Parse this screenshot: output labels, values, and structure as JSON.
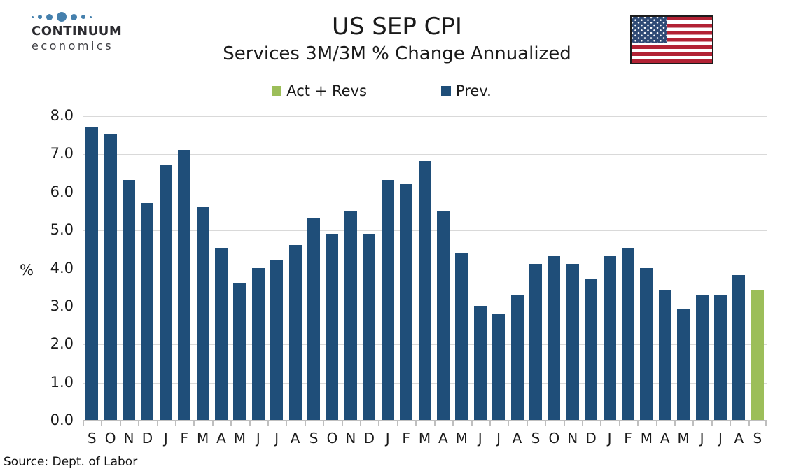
{
  "logo": {
    "line1": "CONTINUUM",
    "line2": "economics",
    "dot_color": "#4580ad",
    "dot_sizes": [
      3,
      6,
      9,
      14,
      9,
      6,
      3
    ]
  },
  "header": {
    "title": "US SEP CPI",
    "subtitle": "Services 3M/3M % Change Annualized"
  },
  "legend": [
    {
      "label": "Act + Revs",
      "color": "#9cbe59"
    },
    {
      "label": "Prev.",
      "color": "#1f4e79"
    }
  ],
  "chart_data": {
    "type": "bar",
    "title": "US SEP CPI",
    "subtitle": "Services 3M/3M % Change Annualized",
    "ylabel": "%",
    "ylim": [
      0,
      8
    ],
    "ytick_step": 1,
    "ytick_format_decimals": 1,
    "grid": true,
    "legend_position": "top",
    "categories": [
      "S",
      "O",
      "N",
      "D",
      "J",
      "F",
      "M",
      "A",
      "M",
      "J",
      "J",
      "A",
      "S",
      "O",
      "N",
      "D",
      "J",
      "F",
      "M",
      "A",
      "M",
      "J",
      "J",
      "A",
      "S",
      "O",
      "N",
      "D",
      "J",
      "F",
      "M",
      "A",
      "M",
      "J",
      "J",
      "A",
      "S"
    ],
    "series": [
      {
        "name": "Act + Revs",
        "color": "#9cbe59",
        "values": [
          null,
          null,
          null,
          null,
          null,
          null,
          null,
          null,
          null,
          null,
          null,
          null,
          null,
          null,
          null,
          null,
          null,
          null,
          null,
          null,
          null,
          null,
          null,
          null,
          null,
          null,
          null,
          null,
          null,
          null,
          null,
          null,
          null,
          null,
          null,
          null,
          3.4
        ]
      },
      {
        "name": "Prev.",
        "color": "#1f4e79",
        "values": [
          7.7,
          7.5,
          6.3,
          5.7,
          6.7,
          7.1,
          5.6,
          4.5,
          3.6,
          4.0,
          4.2,
          4.6,
          5.3,
          4.9,
          5.5,
          4.9,
          6.3,
          6.2,
          6.8,
          5.5,
          4.4,
          3.0,
          2.8,
          3.3,
          4.1,
          4.3,
          4.1,
          3.7,
          4.3,
          4.5,
          4.0,
          3.4,
          2.9,
          3.3,
          3.3,
          3.8,
          null
        ]
      }
    ]
  },
  "footer": {
    "source": "Source: Dept. of Labor"
  }
}
